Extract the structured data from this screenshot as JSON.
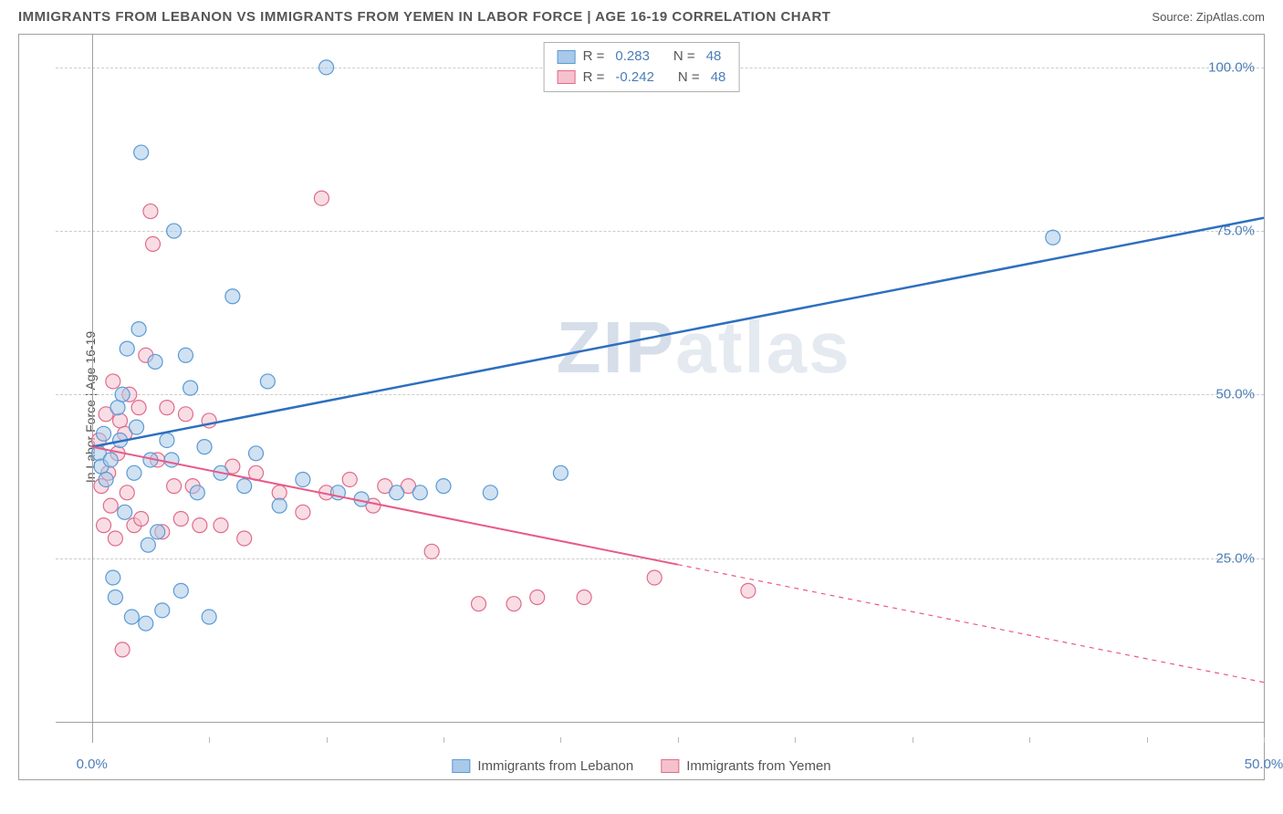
{
  "title": "IMMIGRANTS FROM LEBANON VS IMMIGRANTS FROM YEMEN IN LABOR FORCE | AGE 16-19 CORRELATION CHART",
  "source_label": "Source:",
  "source_value": "ZipAtlas.com",
  "y_axis_label": "In Labor Force | Age 16-19",
  "watermark_main": "ZIP",
  "watermark_light": "atlas",
  "chart": {
    "type": "scatter-with-regression",
    "xlim": [
      0,
      50
    ],
    "ylim": [
      0,
      105
    ],
    "x_ticks_percent": [
      0,
      50
    ],
    "y_ticks_percent": [
      25,
      50,
      75,
      100
    ],
    "x_minor_ticks": [
      0,
      5,
      10,
      15,
      20,
      25,
      30,
      35,
      40,
      45,
      50
    ],
    "grid_color": "#cccccc",
    "background_color": "#ffffff",
    "border_color": "#a0a0a0",
    "inner_axis_x_offset_pct": 3,
    "inner_axis_y_offset_pct_from_bottom": 3
  },
  "series": {
    "lebanon": {
      "label": "Immigrants from Lebanon",
      "color_fill": "#a9c9e8",
      "color_stroke": "#5a9bd5",
      "line_color": "#2e6fc0",
      "line_width": 2.5,
      "marker_radius": 8,
      "fill_opacity": 0.55,
      "R": "0.283",
      "N": "48",
      "regression": {
        "x0": 0,
        "y0": 42,
        "x1_solid": 50,
        "y1_solid": 77
      },
      "points": [
        [
          0.3,
          41
        ],
        [
          0.4,
          39
        ],
        [
          0.5,
          44
        ],
        [
          0.6,
          37
        ],
        [
          0.8,
          40
        ],
        [
          0.9,
          22
        ],
        [
          1.0,
          19
        ],
        [
          1.1,
          48
        ],
        [
          1.2,
          43
        ],
        [
          1.3,
          50
        ],
        [
          1.4,
          32
        ],
        [
          1.5,
          57
        ],
        [
          1.7,
          16
        ],
        [
          1.8,
          38
        ],
        [
          1.9,
          45
        ],
        [
          2.0,
          60
        ],
        [
          2.1,
          87
        ],
        [
          2.3,
          15
        ],
        [
          2.4,
          27
        ],
        [
          2.5,
          40
        ],
        [
          2.7,
          55
        ],
        [
          2.8,
          29
        ],
        [
          3.0,
          17
        ],
        [
          3.2,
          43
        ],
        [
          3.4,
          40
        ],
        [
          3.5,
          75
        ],
        [
          3.8,
          20
        ],
        [
          4.0,
          56
        ],
        [
          4.2,
          51
        ],
        [
          4.5,
          35
        ],
        [
          4.8,
          42
        ],
        [
          5.0,
          16
        ],
        [
          5.5,
          38
        ],
        [
          6.0,
          65
        ],
        [
          6.5,
          36
        ],
        [
          7.0,
          41
        ],
        [
          7.5,
          52
        ],
        [
          8.0,
          33
        ],
        [
          9.0,
          37
        ],
        [
          10.0,
          100
        ],
        [
          10.5,
          35
        ],
        [
          11.5,
          34
        ],
        [
          13.0,
          35
        ],
        [
          14.0,
          35
        ],
        [
          15.0,
          36
        ],
        [
          17.0,
          35
        ],
        [
          20.0,
          38
        ],
        [
          41.0,
          74
        ]
      ]
    },
    "yemen": {
      "label": "Immigrants from Yemen",
      "color_fill": "#f4c1cd",
      "color_stroke": "#e06c8a",
      "line_color": "#e85a87",
      "line_width": 2,
      "marker_radius": 8,
      "fill_opacity": 0.55,
      "R": "-0.242",
      "N": "48",
      "regression_solid": {
        "x0": 0,
        "y0": 42,
        "x1": 25,
        "y1": 24
      },
      "regression_dashed": {
        "x0": 25,
        "y0": 24,
        "x1": 50,
        "y1": 6
      },
      "points": [
        [
          0.3,
          43
        ],
        [
          0.4,
          36
        ],
        [
          0.5,
          30
        ],
        [
          0.6,
          47
        ],
        [
          0.7,
          38
        ],
        [
          0.8,
          33
        ],
        [
          0.9,
          52
        ],
        [
          1.0,
          28
        ],
        [
          1.1,
          41
        ],
        [
          1.2,
          46
        ],
        [
          1.3,
          11
        ],
        [
          1.4,
          44
        ],
        [
          1.5,
          35
        ],
        [
          1.6,
          50
        ],
        [
          1.8,
          30
        ],
        [
          2.0,
          48
        ],
        [
          2.1,
          31
        ],
        [
          2.3,
          56
        ],
        [
          2.5,
          78
        ],
        [
          2.6,
          73
        ],
        [
          2.8,
          40
        ],
        [
          3.0,
          29
        ],
        [
          3.2,
          48
        ],
        [
          3.5,
          36
        ],
        [
          3.8,
          31
        ],
        [
          4.0,
          47
        ],
        [
          4.3,
          36
        ],
        [
          4.6,
          30
        ],
        [
          5.0,
          46
        ],
        [
          5.5,
          30
        ],
        [
          6.0,
          39
        ],
        [
          6.5,
          28
        ],
        [
          7.0,
          38
        ],
        [
          8.0,
          35
        ],
        [
          9.0,
          32
        ],
        [
          9.8,
          80
        ],
        [
          10.0,
          35
        ],
        [
          11.0,
          37
        ],
        [
          12.0,
          33
        ],
        [
          12.5,
          36
        ],
        [
          13.5,
          36
        ],
        [
          14.5,
          26
        ],
        [
          16.5,
          18
        ],
        [
          18.0,
          18
        ],
        [
          19.0,
          19
        ],
        [
          21.0,
          19
        ],
        [
          24.0,
          22
        ],
        [
          28.0,
          20
        ]
      ]
    }
  },
  "legend_top": {
    "R_label": "R =",
    "N_label": "N ="
  }
}
